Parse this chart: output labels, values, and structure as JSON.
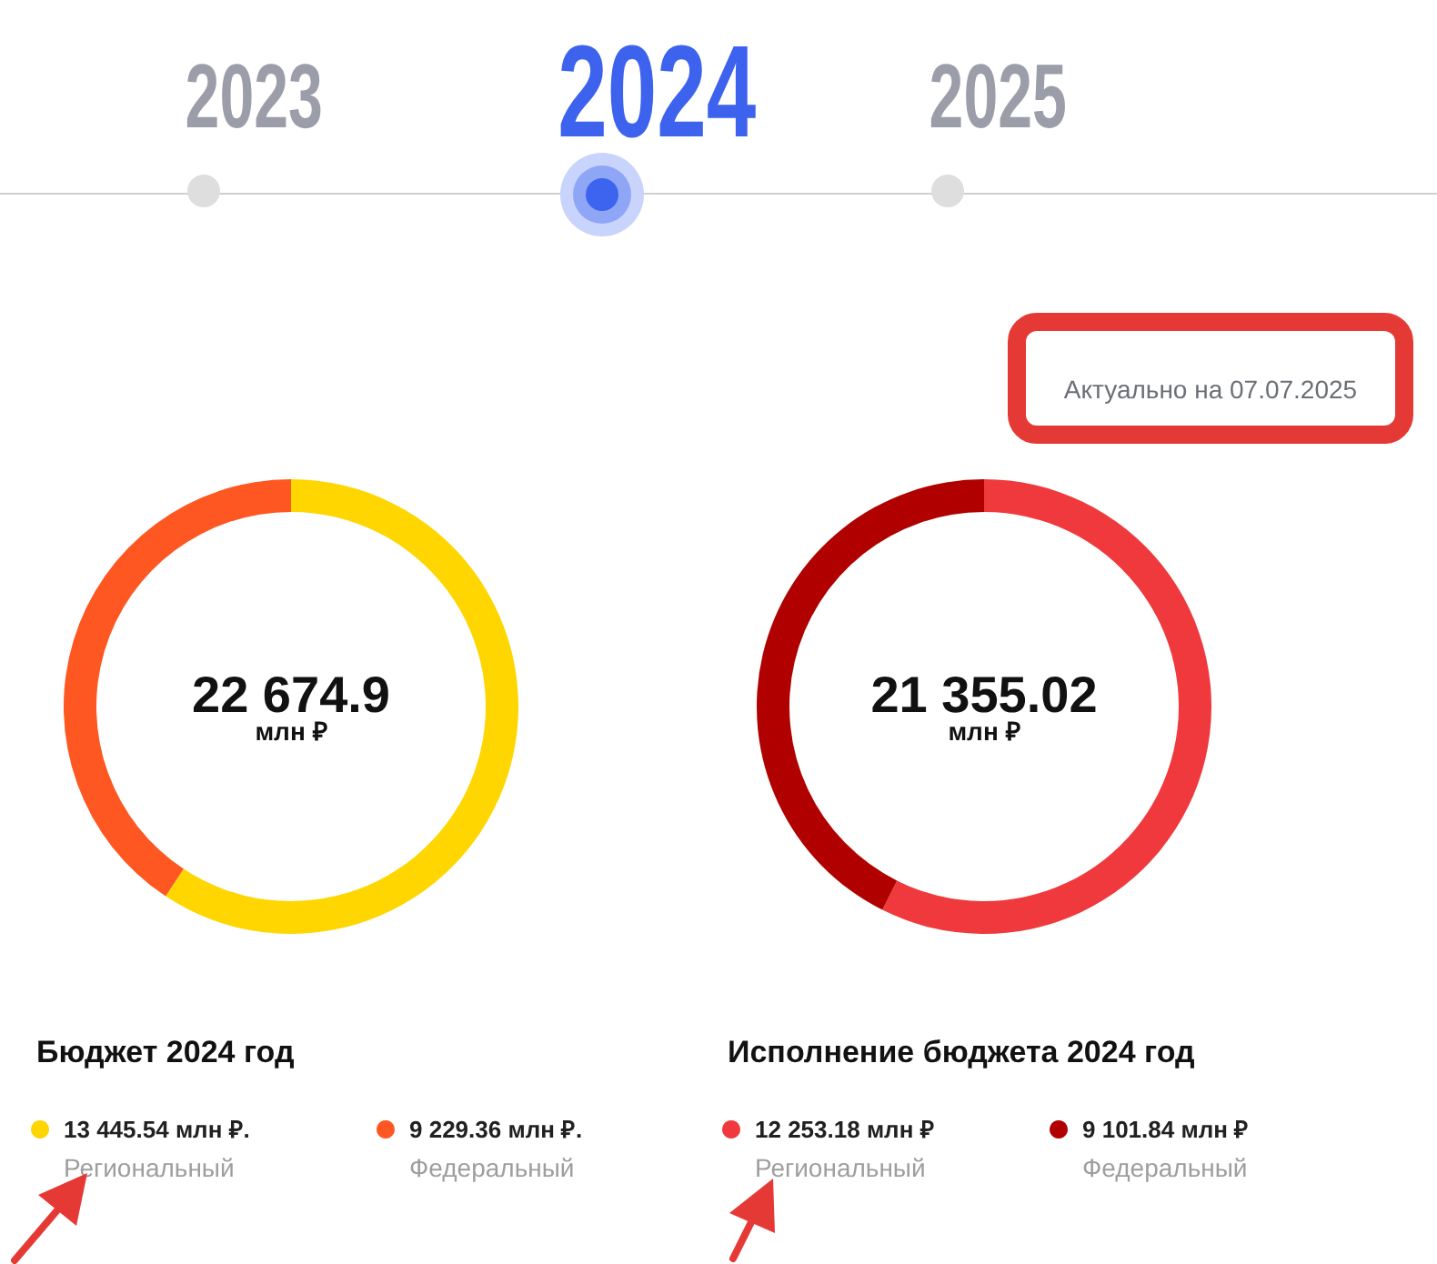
{
  "chart_data": [
    {
      "type": "other",
      "categories": [
        "2023",
        "2024",
        "2025"
      ],
      "annotations": [
        "Актуально на 07.07.2025"
      ]
    },
    {
      "type": "donut",
      "title": "Бюджет 2024 год",
      "categories": [
        "Региональный",
        "Федеральный"
      ],
      "values": [
        13445.54,
        9229.36
      ],
      "colors": [
        "#ffd600",
        "#ff5722"
      ],
      "value_labels": [
        "13 445.54 млн ₽.",
        "9 229.36 млн ₽."
      ],
      "annotations": [
        "22 674.9",
        "млн ₽"
      ],
      "legend": "bottom left"
    },
    {
      "type": "donut",
      "title": "Исполнение бюджета 2024 год",
      "categories": [
        "Региональный",
        "Федеральный"
      ],
      "values": [
        12253.18,
        9101.84
      ],
      "colors": [
        "#f0393c",
        "#b00000"
      ],
      "value_labels": [
        "12 253.18 млн ₽",
        "9 101.84 млн ₽"
      ],
      "annotations": [
        "21 355.02",
        "млн ₽"
      ],
      "legend": "bottom left"
    }
  ]
}
